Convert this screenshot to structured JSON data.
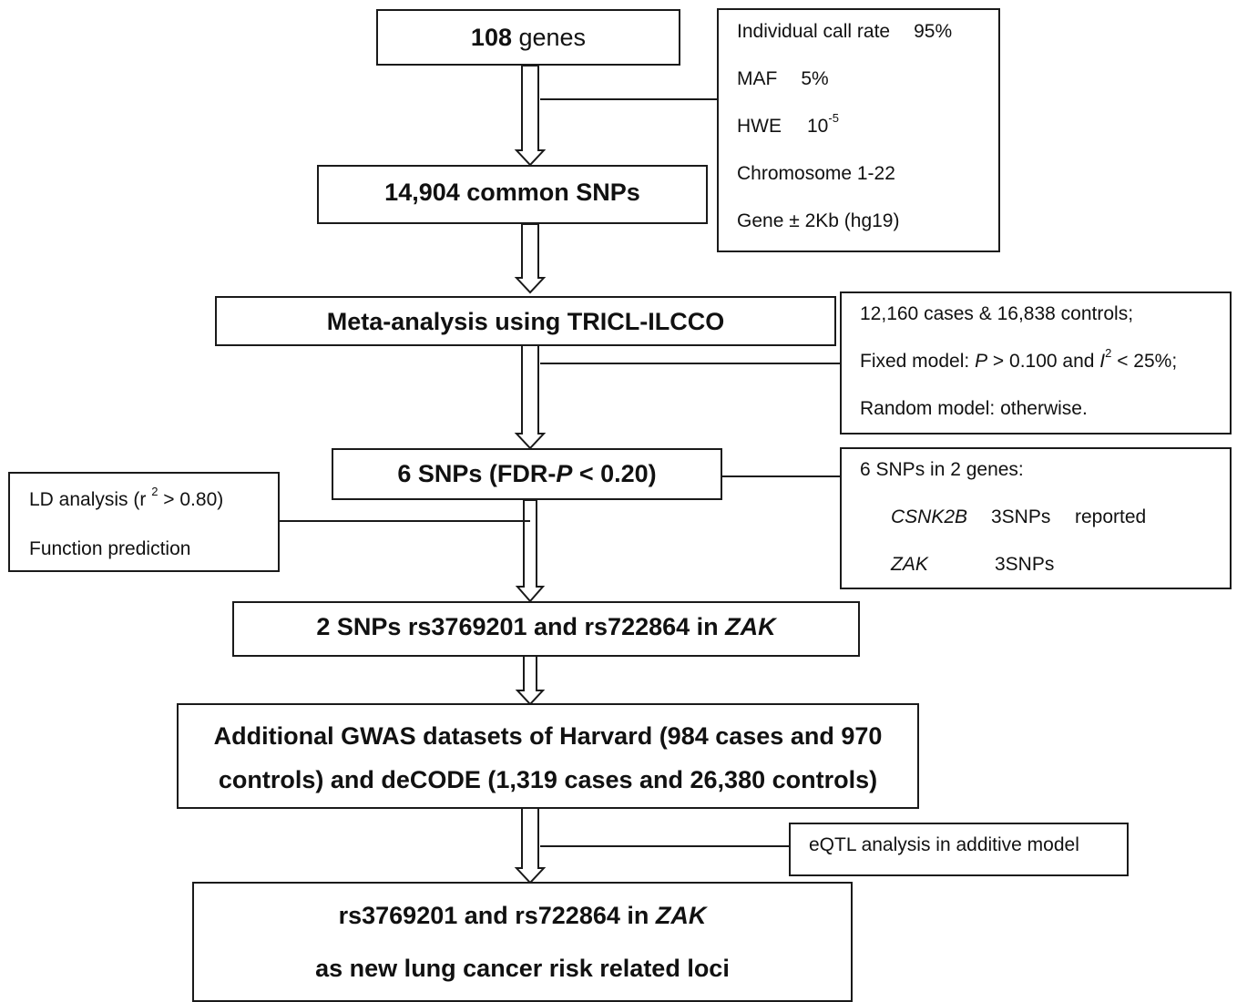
{
  "main_steps": {
    "genes": {
      "count": "108",
      "label": " genes"
    },
    "snps": "14,904 common SNPs",
    "meta": "Meta-analysis using TRICL-ILCCO",
    "fdr": {
      "prefix": "6 SNPs (FDR-",
      "p": "P",
      "suffix": " < 0.20)"
    },
    "zak_snps": {
      "text": "2 SNPs rs3769201 and rs722864 in ",
      "gene": "ZAK"
    },
    "gwas": {
      "line1": "Additional GWAS datasets of Harvard (984 cases and 970",
      "line2": "controls) and deCODE (1,319 cases and 26,380 controls)"
    },
    "final": {
      "line1_text": "rs3769201 and rs722864 in ",
      "line1_gene": "ZAK",
      "line2": "as new lung cancer risk related loci"
    }
  },
  "qc_box": {
    "call_rate": {
      "label": "Individual call rate",
      "value": "95%"
    },
    "maf": {
      "label": "MAF",
      "value": "5%"
    },
    "hwe": {
      "label": "HWE",
      "base": "10",
      "exp": "-5"
    },
    "chromosome": "Chromosome 1-22",
    "gene_region": "Gene ± 2Kb (hg19)"
  },
  "meta_box": {
    "line1": "12,160 cases & 16,838 controls;",
    "fixed": {
      "prefix": "Fixed model: ",
      "p": "P",
      "mid": " > 0.100 and ",
      "i": "I",
      "exp": "2",
      "suffix": " < 25%;"
    },
    "line3": "Random model: otherwise."
  },
  "ld_box": {
    "line1_prefix": "LD analysis (r ",
    "line1_exp": "2",
    "line1_suffix": " > 0.80)",
    "line2": "Function prediction"
  },
  "genes_box": {
    "title": "6 SNPs in 2 genes:",
    "rows": [
      {
        "gene": "CSNK2B",
        "snps": "3SNPs",
        "note": "reported"
      },
      {
        "gene": "ZAK",
        "snps": "3SNPs",
        "note": ""
      }
    ]
  },
  "eqtl_box": {
    "text": "eQTL analysis in additive model"
  }
}
